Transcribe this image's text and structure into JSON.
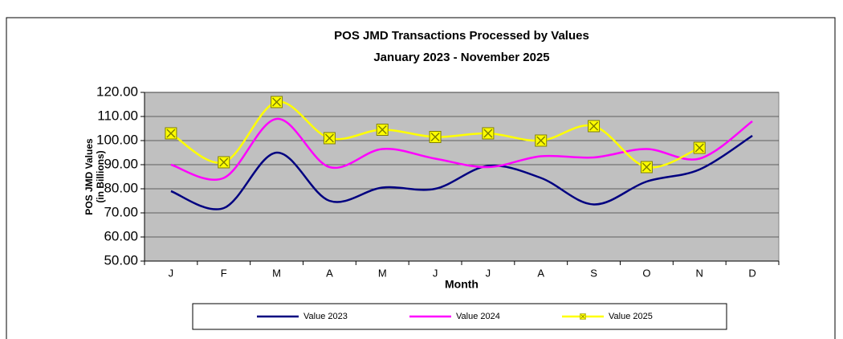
{
  "chart_data": {
    "type": "line",
    "title": [
      "POS JMD Transactions Processed by Values",
      "January 2023 - November 2025"
    ],
    "y_label": [
      "POS JMD Values",
      "(in Billions)"
    ],
    "x_label": "Month",
    "categories": [
      "J",
      "F",
      "M",
      "A",
      "M",
      "J",
      "J",
      "A",
      "S",
      "O",
      "N",
      "D"
    ],
    "series": [
      {
        "name": "Value 2023",
        "color": "#000080",
        "values": [
          79,
          72,
          95,
          75,
          80.5,
          80,
          89.5,
          84.5,
          73.5,
          83,
          88,
          102
        ]
      },
      {
        "name": "Value 2024",
        "color": "#ff00ff",
        "values": [
          90,
          84.5,
          109,
          89,
          96.5,
          92.5,
          89,
          93.5,
          93,
          96.5,
          92.5,
          108
        ]
      },
      {
        "name": "Value 2025",
        "color": "#ffff00",
        "marker": "x-square",
        "values": [
          103,
          91,
          116,
          101,
          104.5,
          101.5,
          103,
          100,
          106,
          89,
          97,
          null
        ]
      }
    ],
    "ylim": [
      50,
      120
    ],
    "yticks": [
      {
        "value": 50,
        "label": "50.00"
      },
      {
        "value": 60,
        "label": "60.00"
      },
      {
        "value": 70,
        "label": "70.00"
      },
      {
        "value": 80,
        "label": "80.00"
      },
      {
        "value": 90,
        "label": "90.00"
      },
      {
        "value": 100,
        "label": "100.00"
      },
      {
        "value": 110,
        "label": "110.00"
      },
      {
        "value": 120,
        "label": "120.00"
      }
    ],
    "grid": true,
    "smooth": true,
    "legend": "bottom"
  }
}
